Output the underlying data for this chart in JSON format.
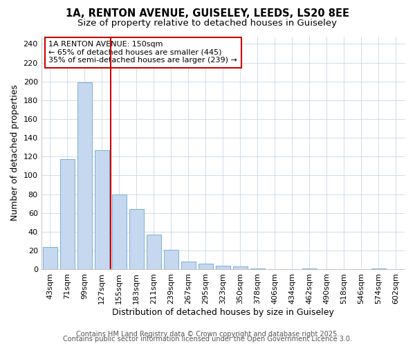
{
  "title_line1": "1A, RENTON AVENUE, GUISELEY, LEEDS, LS20 8EE",
  "title_line2": "Size of property relative to detached houses in Guiseley",
  "categories": [
    "43sqm",
    "71sqm",
    "99sqm",
    "127sqm",
    "155sqm",
    "183sqm",
    "211sqm",
    "239sqm",
    "267sqm",
    "295sqm",
    "323sqm",
    "350sqm",
    "378sqm",
    "406sqm",
    "434sqm",
    "462sqm",
    "490sqm",
    "518sqm",
    "546sqm",
    "574sqm",
    "602sqm"
  ],
  "values": [
    24,
    117,
    199,
    127,
    80,
    64,
    37,
    21,
    8,
    6,
    4,
    3,
    1,
    0,
    0,
    1,
    0,
    0,
    0,
    1,
    0
  ],
  "bar_color": "#c5d8f0",
  "bar_edge_color": "#7bafd4",
  "vline_x": 3.5,
  "vline_color": "#cc0000",
  "annotation_text": "1A RENTON AVENUE: 150sqm\n← 65% of detached houses are smaller (445)\n35% of semi-detached houses are larger (239) →",
  "annotation_box_color": "#cc0000",
  "xlabel": "Distribution of detached houses by size in Guiseley",
  "ylabel": "Number of detached properties",
  "ylim": [
    0,
    248
  ],
  "yticks": [
    0,
    20,
    40,
    60,
    80,
    100,
    120,
    140,
    160,
    180,
    200,
    220,
    240
  ],
  "footer_line1": "Contains HM Land Registry data © Crown copyright and database right 2025.",
  "footer_line2": "Contains public sector information licensed under the Open Government Licence 3.0.",
  "bg_color": "#ffffff",
  "plot_bg_color": "#ffffff",
  "title_fontsize": 10.5,
  "subtitle_fontsize": 9.5,
  "axis_label_fontsize": 9,
  "tick_fontsize": 8,
  "annotation_fontsize": 8,
  "footer_fontsize": 7
}
